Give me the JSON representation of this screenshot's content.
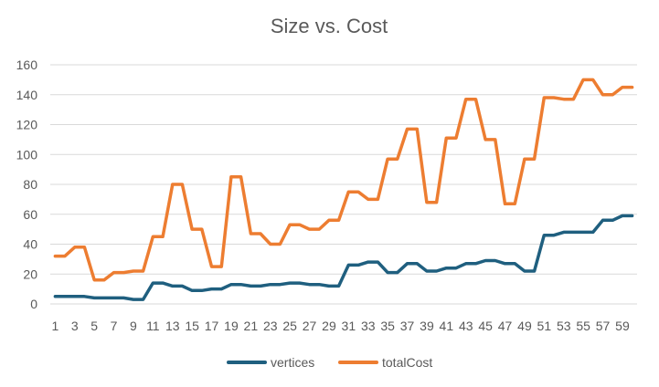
{
  "chart_data": {
    "type": "line",
    "title": "Size vs. Cost",
    "xlabel": "",
    "ylabel": "",
    "ylim": [
      0,
      160
    ],
    "y_ticks": [
      0,
      20,
      40,
      60,
      80,
      100,
      120,
      140,
      160
    ],
    "grid": "horizontal",
    "legend_position": "bottom",
    "x": [
      1,
      2,
      3,
      4,
      5,
      6,
      7,
      8,
      9,
      10,
      11,
      12,
      13,
      14,
      15,
      16,
      17,
      18,
      19,
      20,
      21,
      22,
      23,
      24,
      25,
      26,
      27,
      28,
      29,
      30,
      31,
      32,
      33,
      34,
      35,
      36,
      37,
      38,
      39,
      40,
      41,
      42,
      43,
      44,
      45,
      46,
      47,
      48,
      49,
      50,
      51,
      52,
      53,
      54,
      55,
      56,
      57,
      58,
      59,
      60
    ],
    "x_tick_labels": [
      "1",
      "3",
      "5",
      "7",
      "9",
      "11",
      "13",
      "15",
      "17",
      "19",
      "21",
      "23",
      "25",
      "27",
      "29",
      "31",
      "33",
      "35",
      "37",
      "39",
      "41",
      "43",
      "45",
      "47",
      "49",
      "51",
      "53",
      "55",
      "57",
      "59"
    ],
    "series": [
      {
        "name": "vertices",
        "color": "#1f5f7f",
        "values": [
          5,
          5,
          5,
          5,
          4,
          4,
          4,
          4,
          3,
          3,
          14,
          14,
          12,
          12,
          9,
          9,
          10,
          10,
          13,
          13,
          12,
          12,
          13,
          13,
          14,
          14,
          13,
          13,
          12,
          12,
          26,
          26,
          28,
          28,
          21,
          21,
          27,
          27,
          22,
          22,
          24,
          24,
          27,
          27,
          29,
          29,
          27,
          27,
          22,
          22,
          46,
          46,
          48,
          48,
          48,
          48,
          56,
          56,
          59,
          59
        ]
      },
      {
        "name": "totalCost",
        "color": "#ed7d31",
        "values": [
          32,
          32,
          38,
          38,
          16,
          16,
          21,
          21,
          22,
          22,
          45,
          45,
          80,
          80,
          50,
          50,
          25,
          25,
          85,
          85,
          47,
          47,
          40,
          40,
          53,
          53,
          50,
          50,
          56,
          56,
          75,
          75,
          70,
          70,
          97,
          97,
          117,
          117,
          68,
          68,
          111,
          111,
          137,
          137,
          110,
          110,
          67,
          67,
          97,
          97,
          138,
          138,
          137,
          137,
          150,
          150,
          140,
          140,
          145,
          145
        ]
      }
    ]
  }
}
